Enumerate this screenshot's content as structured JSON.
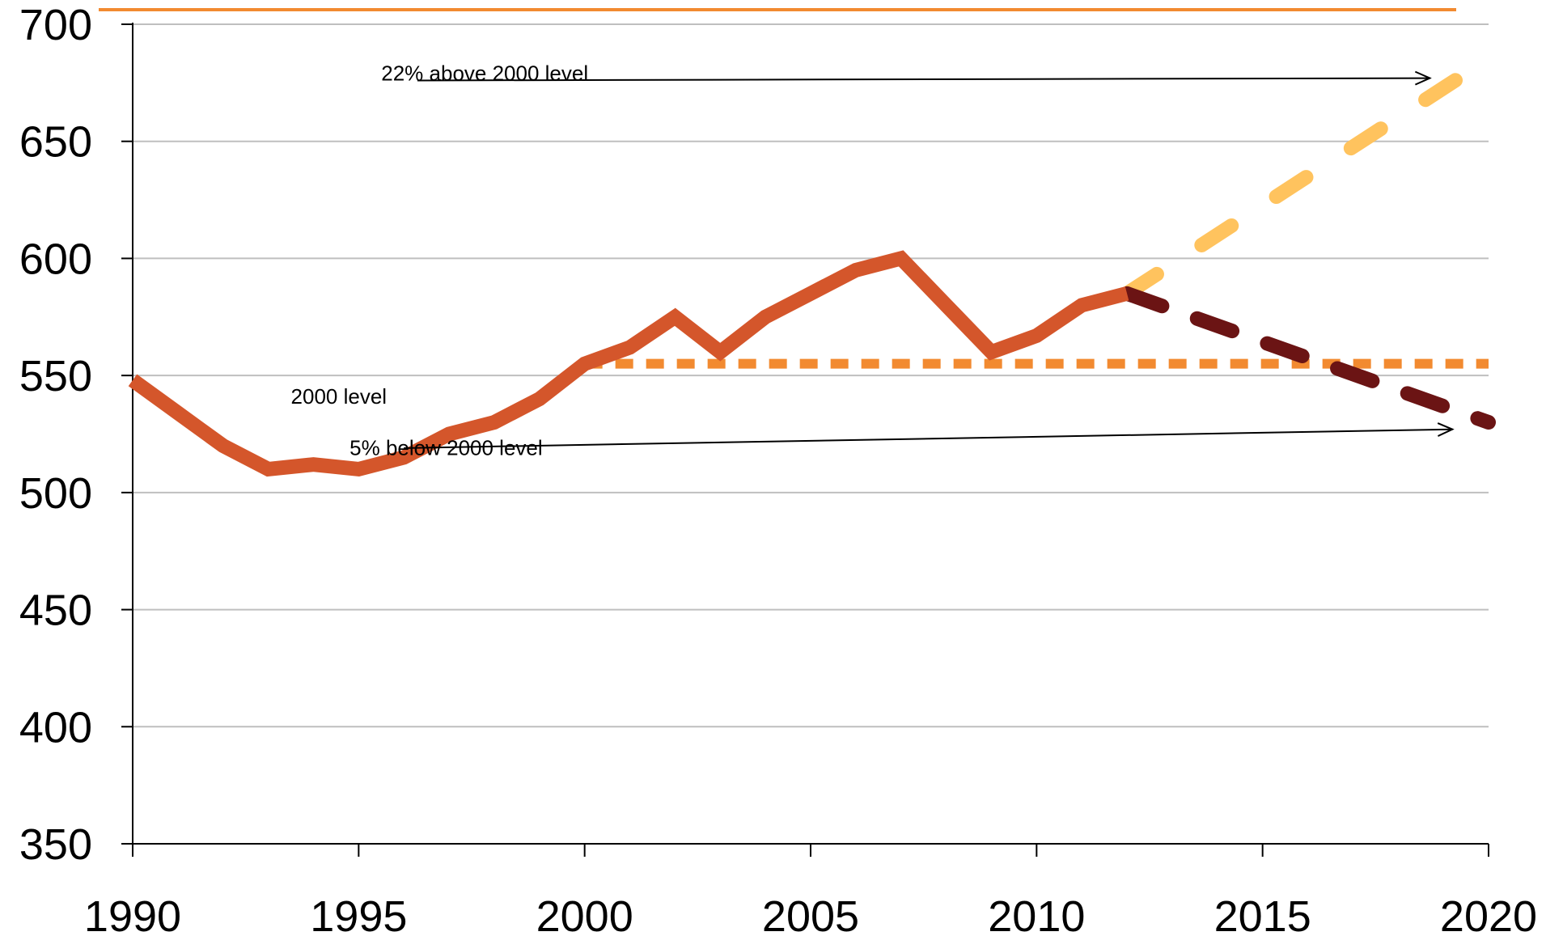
{
  "chart_data": {
    "type": "line",
    "title": "",
    "xlabel": "",
    "ylabel": "",
    "xlim": [
      1990,
      2020
    ],
    "ylim": [
      350,
      700
    ],
    "x_ticks": [
      "1990",
      "1995",
      "2000",
      "2005",
      "2010",
      "2015",
      "2020"
    ],
    "y_ticks": [
      "350",
      "400",
      "450",
      "500",
      "550",
      "600",
      "650",
      "700"
    ],
    "grid": "horizontal",
    "series": [
      {
        "style": "solid",
        "color": "#D4562B",
        "points": [
          [
            1990,
            548
          ],
          [
            1991,
            534
          ],
          [
            1992,
            520
          ],
          [
            1993,
            510
          ],
          [
            1994,
            512
          ],
          [
            1995,
            510
          ],
          [
            1996,
            515
          ],
          [
            1997,
            525
          ],
          [
            1998,
            530
          ],
          [
            1999,
            540
          ],
          [
            2000,
            555
          ],
          [
            2001,
            562
          ],
          [
            2002,
            575
          ],
          [
            2003,
            560
          ],
          [
            2004,
            575
          ],
          [
            2005,
            585
          ],
          [
            2006,
            595
          ],
          [
            2007,
            600
          ],
          [
            2008,
            580
          ],
          [
            2009,
            560
          ],
          [
            2010,
            567
          ],
          [
            2011,
            580
          ],
          [
            2012,
            585
          ]
        ]
      },
      {
        "style": "dashed",
        "color": "#FFC35E",
        "points": [
          [
            2012,
            585
          ],
          [
            2019.5,
            679
          ]
        ]
      },
      {
        "style": "dashed",
        "color": "#6B1414",
        "points": [
          [
            2012,
            585
          ],
          [
            2020,
            530
          ]
        ]
      },
      {
        "style": "dashed",
        "color": "#F28A30",
        "points": [
          [
            2000,
            555
          ],
          [
            2020,
            555
          ]
        ]
      }
    ],
    "annotations": [
      {
        "text": "22% above 2000 level",
        "label_at": [
          1995.5,
          676
        ],
        "arrow_from": [
          1996.3,
          676
        ],
        "arrow_to": [
          2018.7,
          677
        ]
      },
      {
        "text": "2000 level",
        "label_at": [
          1993.5,
          538
        ]
      },
      {
        "text": "5% below 2000 level",
        "label_at": [
          1994.8,
          516
        ],
        "arrow_from": [
          1996,
          519
        ],
        "arrow_to": [
          2019.2,
          527
        ]
      }
    ],
    "colors": {
      "axis": "#000000",
      "grid": "#BFBFBF",
      "top_rule": "#F28A30"
    }
  }
}
